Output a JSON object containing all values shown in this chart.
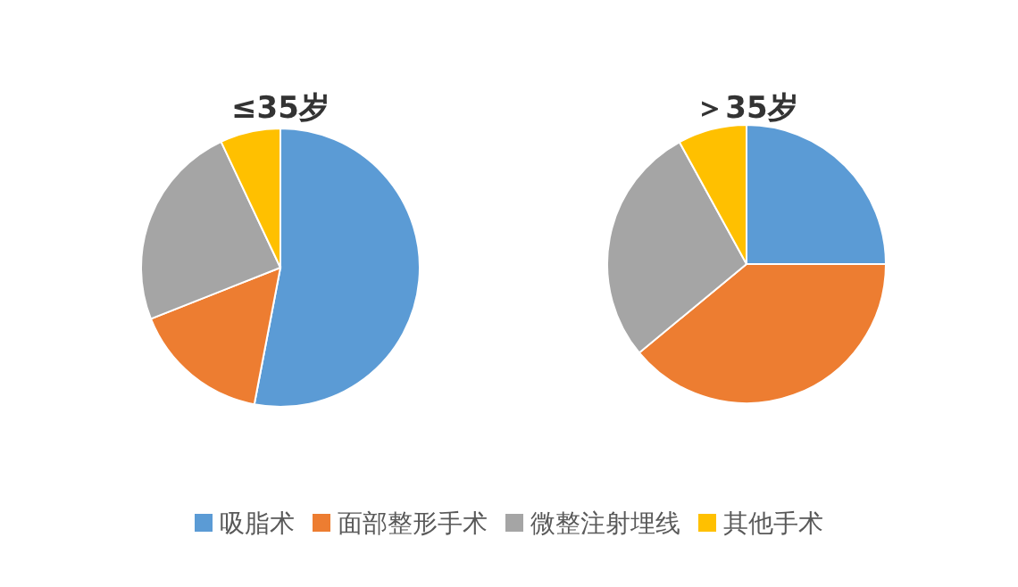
{
  "chart_data": {
    "type": "pie",
    "categories": [
      "吸脂术",
      "面部整形手术",
      "微整注射埋线",
      "其他手术"
    ],
    "colors": [
      "#5b9bd5",
      "#ed7d31",
      "#a5a5a5",
      "#ffc000"
    ],
    "legend": "bottom",
    "series": [
      {
        "name": "≤35岁",
        "values": [
          53,
          16,
          24,
          7
        ]
      },
      {
        "name": "＞35岁",
        "values": [
          25,
          39,
          28,
          8
        ]
      }
    ]
  }
}
